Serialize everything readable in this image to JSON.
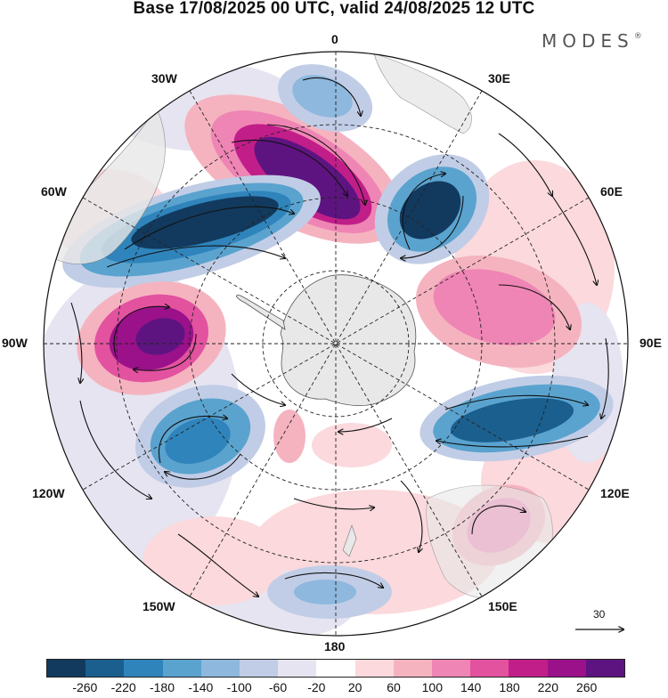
{
  "title": "Base 17/08/2025 00 UTC, valid 24/08/2025 12 UTC",
  "brand": "MODES",
  "brand_mark": "®",
  "longitude_labels": {
    "lon_0": "0",
    "lon_30e": "30E",
    "lon_60e": "60E",
    "lon_90e": "90E",
    "lon_120e": "120E",
    "lon_150e": "150E",
    "lon_180": "180",
    "lon_150w": "150W",
    "lon_120w": "120W",
    "lon_90w": "90W",
    "lon_60w": "60W",
    "lon_30w": "30W"
  },
  "vector_scale": {
    "label": "30"
  },
  "colorbar": {
    "colors": [
      "#123a5e",
      "#1a5f8e",
      "#2f84bb",
      "#5aa3cf",
      "#8eb8dd",
      "#c1cde6",
      "#e6e4f0",
      "#ffffff",
      "#fbd9dc",
      "#f5b3c0",
      "#ef85b4",
      "#e2529f",
      "#c11e8a",
      "#9a118a",
      "#5e1480"
    ],
    "labels": [
      "-260",
      "-220",
      "-180",
      "-140",
      "-100",
      "-60",
      "-20",
      "20",
      "60",
      "100",
      "140",
      "180",
      "220",
      "260"
    ]
  },
  "colors": {
    "land": "#e8e8e8",
    "ocean_background": "#ffffff"
  }
}
